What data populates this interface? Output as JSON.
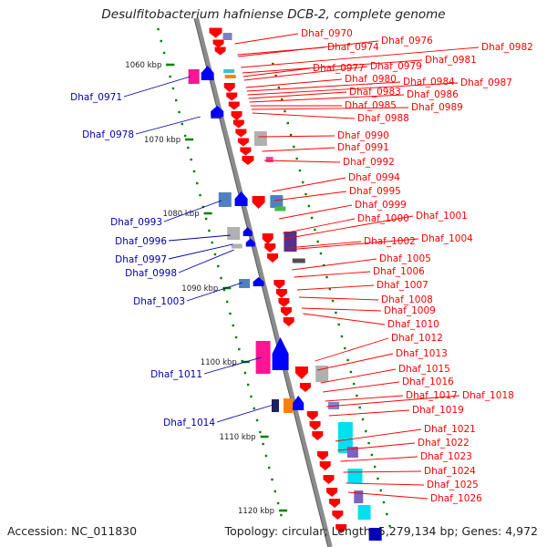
{
  "title": "Desulfitobacterium hafniense DCB-2, complete genome",
  "footer": {
    "accession": "Accession: NC_011830",
    "summary": "Topology: circular; Length: 5,279,134 bp; Genes: 4,972"
  },
  "colors": {
    "backbone": "#8c8c8c",
    "forward_label": "#ff0000",
    "reverse_label": "#0000aa",
    "ruler_tick": "#008000"
  },
  "ruler": [
    {
      "label": "1060 kbp"
    },
    {
      "label": "1070 kbp"
    },
    {
      "label": "1080 kbp"
    },
    {
      "label": "1090 kbp"
    },
    {
      "label": "1100 kbp"
    },
    {
      "label": "1110 kbp"
    },
    {
      "label": "1120 kbp"
    }
  ],
  "forward_genes": [
    "Dhaf_0970",
    "Dhaf_0974",
    "Dhaf_0976",
    "Dhaf_0982",
    "Dhaf_0981",
    "Dhaf_0977",
    "Dhaf_0979",
    "Dhaf_0980",
    "Dhaf_0984",
    "Dhaf_0987",
    "Dhaf_0983",
    "Dhaf_0986",
    "Dhaf_0985",
    "Dhaf_0989",
    "Dhaf_0988",
    "Dhaf_0990",
    "Dhaf_0991",
    "Dhaf_0992",
    "Dhaf_0994",
    "Dhaf_0995",
    "Dhaf_0999",
    "Dhaf_1000",
    "Dhaf_1001",
    "Dhaf_1002",
    "Dhaf_1004",
    "Dhaf_1005",
    "Dhaf_1006",
    "Dhaf_1007",
    "Dhaf_1008",
    "Dhaf_1009",
    "Dhaf_1010",
    "Dhaf_1012",
    "Dhaf_1013",
    "Dhaf_1015",
    "Dhaf_1016",
    "Dhaf_1017",
    "Dhaf_1018",
    "Dhaf_1019",
    "Dhaf_1021",
    "Dhaf_1022",
    "Dhaf_1023",
    "Dhaf_1024",
    "Dhaf_1025",
    "Dhaf_1026"
  ],
  "reverse_genes": [
    "Dhaf_0971",
    "Dhaf_0978",
    "Dhaf_0993",
    "Dhaf_0996",
    "Dhaf_0997",
    "Dhaf_0998",
    "Dhaf_1003",
    "Dhaf_1011",
    "Dhaf_1014"
  ]
}
